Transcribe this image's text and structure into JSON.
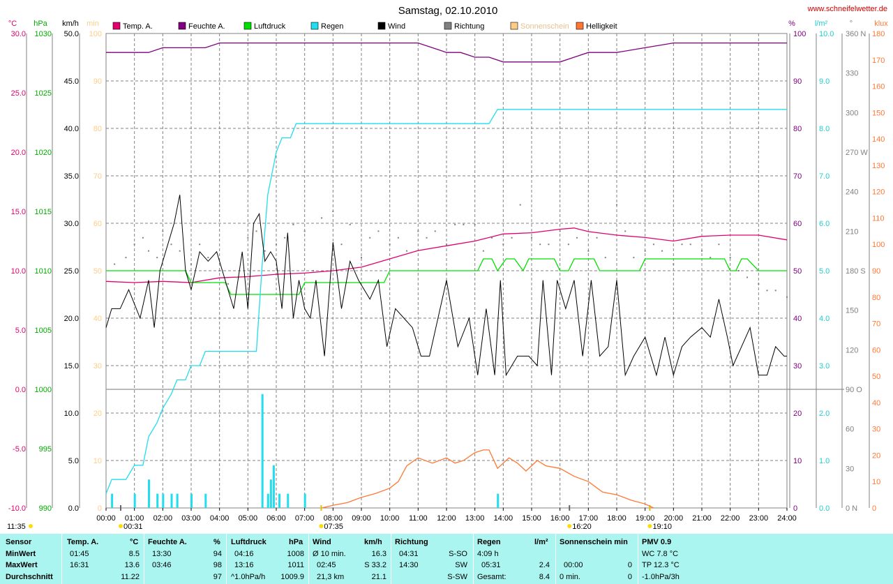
{
  "page": {
    "title": "Samstag, 02.10.2010",
    "website": "www.schneifelwetter.de"
  },
  "legend": [
    {
      "label": "Temp. A.",
      "color": "#e0006e"
    },
    {
      "label": "Feuchte A.",
      "color": "#800080"
    },
    {
      "label": "Luftdruck",
      "color": "#00e000"
    },
    {
      "label": "Regen",
      "color": "#22ddee"
    },
    {
      "label": "Wind",
      "color": "#000000"
    },
    {
      "label": "Richtung",
      "color": "#808080"
    },
    {
      "label": "Sonnenschein",
      "color": "#ffcc88"
    },
    {
      "label": "Helligkeit",
      "color": "#ff7733"
    }
  ],
  "axes": {
    "temp": {
      "unit": "°C",
      "color": "#e0006e",
      "ticks": [
        "30.0",
        "25.0",
        "20.0",
        "15.0",
        "10.0",
        "5.0",
        "0.0",
        "-5.0",
        "-10.0"
      ]
    },
    "pressure": {
      "unit": "hPa",
      "color": "#00b000",
      "ticks": [
        "1030",
        "1025",
        "1020",
        "1015",
        "1010",
        "1005",
        "1000",
        "995",
        "990"
      ]
    },
    "wind": {
      "unit": "km/h",
      "color": "#000000",
      "ticks": [
        "50.0",
        "45.0",
        "40.0",
        "35.0",
        "30.0",
        "25.0",
        "20.0",
        "15.0",
        "10.0",
        "5.0",
        "0.0"
      ]
    },
    "sun": {
      "unit": "min",
      "color": "#ffcc88",
      "ticks": [
        "100",
        "90",
        "80",
        "70",
        "60",
        "50",
        "40",
        "30",
        "20",
        "10",
        "0"
      ]
    },
    "humidity": {
      "unit": "%",
      "color": "#800080",
      "ticks": [
        "100",
        "90",
        "80",
        "70",
        "60",
        "50",
        "40",
        "30",
        "20",
        "10",
        "0"
      ]
    },
    "rain": {
      "unit": "l/m²",
      "color": "#22cccc",
      "ticks": [
        "10.0",
        "9.0",
        "8.0",
        "7.0",
        "6.0",
        "5.0",
        "4.0",
        "3.0",
        "2.0",
        "1.0",
        "0.0"
      ]
    },
    "direction": {
      "unit": "°",
      "color": "#808080",
      "ticks": [
        "360 N",
        "330",
        "300",
        "270 W",
        "240",
        "210",
        "180 S",
        "150",
        "120",
        "90 O",
        "60",
        "30",
        "0 N"
      ]
    },
    "lux": {
      "unit": "klux",
      "color": "#ff7733",
      "ticks": [
        "180",
        "170",
        "160",
        "150",
        "140",
        "130",
        "120",
        "110",
        "100",
        "90",
        "80",
        "70",
        "60",
        "50",
        "40",
        "30",
        "20",
        "10",
        "0"
      ]
    },
    "time_ticks": [
      "00:00",
      "01:00",
      "02:00",
      "03:00",
      "04:00",
      "05:00",
      "06:00",
      "07:00",
      "08:00",
      "09:00",
      "10:00",
      "11:00",
      "12:00",
      "13:00",
      "14:00",
      "15:00",
      "16:00",
      "17:00",
      "18:00",
      "19:00",
      "20:00",
      "21:00",
      "22:00",
      "23:00",
      "24:00"
    ]
  },
  "markers": {
    "min_time": "00:31",
    "sunrise": "07:35",
    "max_time": "16:20",
    "sunset": "19:10",
    "clock": "11:35"
  },
  "chart_data": {
    "type": "line",
    "title": "Samstag, 02.10.2010",
    "x_unit": "hours",
    "xlim": [
      0,
      24
    ],
    "series": [
      {
        "name": "Temp. A.",
        "axis": "temp",
        "color": "#e0006e",
        "x": [
          0,
          1,
          2,
          3,
          4,
          5,
          6,
          7,
          8,
          9,
          10,
          11,
          12,
          13,
          14,
          15,
          16,
          16.5,
          17,
          18,
          19,
          20,
          21,
          22,
          23,
          24
        ],
        "y": [
          9.1,
          9.0,
          9.1,
          9.0,
          9.4,
          9.5,
          9.7,
          9.8,
          10.0,
          10.3,
          11.0,
          11.7,
          12.1,
          12.5,
          13.1,
          13.2,
          13.5,
          13.6,
          13.3,
          13.0,
          12.8,
          12.5,
          12.9,
          13.0,
          13.0,
          12.6
        ]
      },
      {
        "name": "Feuchte A.",
        "axis": "humidity",
        "color": "#800080",
        "x": [
          0,
          1.5,
          2,
          3.5,
          4,
          11,
          11.5,
          12,
          12.5,
          13,
          13.5,
          14,
          16,
          16.5,
          17,
          18,
          19,
          20,
          24
        ],
        "y": [
          96,
          96,
          97,
          97,
          98,
          98,
          97,
          96,
          96,
          95,
          95,
          94,
          94,
          95,
          96,
          96,
          97,
          98,
          98
        ]
      },
      {
        "name": "Luftdruck",
        "axis": "pressure",
        "color": "#00e000",
        "x": [
          0,
          2.8,
          3,
          4.2,
          4.4,
          6.8,
          7,
          9.8,
          10,
          13.1,
          13.3,
          13.6,
          13.8,
          14.1,
          14.4,
          14.7,
          14.9,
          15.8,
          16,
          16.3,
          16.5,
          17.2,
          17.4,
          18.8,
          19,
          21.8,
          22,
          22.2,
          22.4,
          22.6,
          23,
          24
        ],
        "y": [
          1010,
          1010,
          1009,
          1009,
          1008,
          1008,
          1009,
          1009,
          1010,
          1010,
          1011,
          1011,
          1010,
          1011,
          1011,
          1010,
          1011,
          1011,
          1010,
          1010,
          1011,
          1011,
          1010,
          1010,
          1011,
          1011,
          1010,
          1010,
          1011,
          1011,
          1010,
          1010
        ]
      },
      {
        "name": "Regen",
        "axis": "rain",
        "color": "#22ddee",
        "x": [
          0,
          0.2,
          0.7,
          1,
          1.3,
          1.5,
          1.8,
          2,
          2.3,
          2.5,
          2.8,
          3,
          3.3,
          3.5,
          3.8,
          4,
          5.3,
          5.5,
          5.7,
          6,
          6.2,
          6.5,
          6.7,
          7,
          13.5,
          13.8,
          24
        ],
        "y": [
          0.3,
          0.6,
          0.6,
          0.9,
          0.9,
          1.5,
          1.8,
          2.1,
          2.4,
          2.7,
          2.7,
          3.0,
          3.0,
          3.3,
          3.3,
          3.3,
          3.3,
          5.1,
          6.6,
          7.5,
          7.8,
          7.8,
          8.1,
          8.1,
          8.1,
          8.4,
          8.4
        ]
      },
      {
        "name": "Wind",
        "axis": "wind",
        "color": "#000000",
        "x": [
          0,
          0.2,
          0.5,
          0.8,
          1.2,
          1.5,
          1.7,
          1.9,
          2.1,
          2.4,
          2.6,
          2.8,
          3.0,
          3.3,
          3.6,
          3.9,
          4.2,
          4.5,
          4.8,
          5.0,
          5.2,
          5.4,
          5.6,
          5.8,
          6.0,
          6.2,
          6.4,
          6.6,
          6.8,
          7.0,
          7.2,
          7.4,
          7.7,
          8.0,
          8.3,
          8.6,
          8.9,
          9.1,
          9.3,
          9.6,
          9.9,
          10.2,
          10.5,
          10.8,
          11.1,
          11.4,
          11.7,
          12.0,
          12.4,
          12.8,
          13.1,
          13.4,
          13.7,
          13.9,
          14.1,
          14.5,
          14.9,
          15.2,
          15.4,
          15.7,
          15.9,
          16.2,
          16.5,
          16.8,
          17.1,
          17.4,
          17.7,
          18.0,
          18.3,
          18.6,
          19.0,
          19.4,
          19.7,
          20.0,
          20.3,
          20.6,
          21.0,
          21.3,
          21.6,
          21.9,
          22.1,
          22.4,
          22.7,
          23.0,
          23.3,
          23.6,
          23.9,
          24.0
        ],
        "y": [
          19,
          21,
          21,
          23,
          20,
          24,
          19,
          25,
          27,
          30,
          33,
          25,
          23,
          27,
          26,
          27,
          24,
          21,
          27,
          21,
          30,
          31,
          26,
          27,
          26,
          21,
          29,
          20,
          24,
          21,
          20,
          24,
          16,
          28,
          21,
          26,
          24,
          23,
          22,
          24,
          17,
          21,
          20,
          19,
          16,
          16,
          20,
          24,
          17,
          20,
          14,
          21,
          14,
          24,
          14,
          16,
          16,
          15,
          24,
          14,
          24,
          21,
          24,
          16,
          24,
          16,
          17,
          24,
          14,
          16,
          18,
          14,
          18,
          14,
          17,
          18,
          19,
          18,
          22,
          18,
          15,
          17,
          19,
          14,
          14,
          17,
          16,
          16
        ]
      },
      {
        "name": "Helligkeit",
        "axis": "lux",
        "color": "#ff7733",
        "x": [
          7.6,
          8,
          8.5,
          9,
          9.5,
          10,
          10.3,
          10.6,
          11,
          11.5,
          12,
          12.3,
          12.6,
          13,
          13.3,
          13.5,
          13.8,
          14.2,
          14.5,
          14.8,
          15.2,
          15.5,
          16,
          16.5,
          17,
          17.5,
          18,
          18.5,
          19,
          19.3
        ],
        "y": [
          0,
          1,
          2,
          4,
          5.5,
          7.5,
          10,
          16,
          19,
          17,
          19,
          17,
          18,
          21,
          22,
          22,
          15,
          19,
          17,
          14,
          18,
          16,
          15,
          12,
          10,
          6,
          5,
          3,
          1.5,
          0
        ]
      },
      {
        "name": "Regen (Balken)",
        "axis": "rain",
        "type": "bar",
        "color": "#22ddee",
        "x": [
          0.2,
          1,
          1.5,
          1.8,
          2,
          2.3,
          2.5,
          3,
          3.5,
          5.5,
          5.7,
          5.8,
          5.9,
          6.1,
          6.4,
          7.0,
          13.8
        ],
        "y": [
          0.3,
          0.3,
          0.6,
          0.3,
          0.3,
          0.3,
          0.3,
          0.3,
          0.3,
          2.4,
          0.3,
          0.6,
          0.9,
          0.3,
          0.3,
          0.3,
          0.3
        ]
      },
      {
        "name": "Richtung",
        "axis": "direction",
        "type": "scatter",
        "color": "#808080",
        "x": [
          0.3,
          0.7,
          1.0,
          1.3,
          1.5,
          1.8,
          2.0,
          2.3,
          2.6,
          3.0,
          3.3,
          3.6,
          4.0,
          4.3,
          4.6,
          5.0,
          5.3,
          5.6,
          6.0,
          6.3,
          6.6,
          7.0,
          7.3,
          7.6,
          8.0,
          8.3,
          8.6,
          9.0,
          9.3,
          9.6,
          10.0,
          10.3,
          10.6,
          11.0,
          11.3,
          11.6,
          12.0,
          12.3,
          12.6,
          13.0,
          13.3,
          13.6,
          14.0,
          14.3,
          14.6,
          15.0,
          15.3,
          15.6,
          16.0,
          16.3,
          16.6,
          17.0,
          17.3,
          17.6,
          18.0,
          18.3,
          18.6,
          19.0,
          19.3,
          19.6,
          20.0,
          20.3,
          20.6,
          21.0,
          21.3,
          21.6,
          22.0,
          22.3,
          22.6,
          23.0,
          23.3,
          23.6,
          24.0
        ],
        "y": [
          185,
          190,
          200,
          205,
          195,
          190,
          210,
          200,
          195,
          185,
          200,
          190,
          180,
          170,
          175,
          205,
          210,
          195,
          200,
          205,
          215,
          210,
          180,
          220,
          225,
          200,
          215,
          190,
          205,
          210,
          200,
          205,
          195,
          210,
          205,
          210,
          200,
          215,
          215,
          215,
          195,
          205,
          200,
          205,
          230,
          205,
          200,
          200,
          210,
          200,
          205,
          195,
          205,
          190,
          230,
          210,
          190,
          195,
          200,
          195,
          185,
          200,
          200,
          195,
          190,
          200,
          190,
          180,
          175,
          170,
          165,
          165,
          160
        ]
      }
    ]
  },
  "stats": {
    "headers": [
      {
        "label": "Sensor"
      },
      {
        "label": "Temp. A.",
        "unit": "°C"
      },
      {
        "label": "Feuchte A.",
        "unit": "%"
      },
      {
        "label": "Luftdruck",
        "unit": "hPa"
      },
      {
        "label": "Wind",
        "unit": "km/h"
      },
      {
        "label": "Richtung"
      },
      {
        "label": "Regen",
        "unit": "l/m²"
      },
      {
        "label": "Sonnenschein min"
      },
      {
        "label": "PMV 0.9"
      }
    ],
    "rows": [
      {
        "label": "MinWert",
        "temp_time": "01:45",
        "temp_val": "8.5",
        "hum_time": "13:30",
        "hum_val": "94",
        "press_time": "04:16",
        "press_val": "1008",
        "wind_time": "Ø 10 min.",
        "wind_val": "16.3",
        "dir_time": "04:31",
        "dir_val": "S-SO",
        "rain_time": "4:09 h",
        "rain_val": "",
        "sun_time": "",
        "sun_val": "",
        "pmv": "WC 7.8 °C"
      },
      {
        "label": "MaxWert",
        "temp_time": "16:31",
        "temp_val": "13.6",
        "hum_time": "03:46",
        "hum_val": "98",
        "press_time": "13:16",
        "press_val": "1011",
        "wind_time": "02:45",
        "wind_val": "S 33.2",
        "dir_time": "14:30",
        "dir_val": "SW",
        "rain_time": "05:31",
        "rain_val": "2.4",
        "sun_time": "00:00",
        "sun_val": "0",
        "pmv": "TP 12.3 °C"
      },
      {
        "label": "Durchschnitt",
        "temp_time": "",
        "temp_val": "11.22",
        "hum_time": "",
        "hum_val": "97",
        "press_time": "^1.0hPa/h",
        "press_val": "1009.9",
        "wind_time": "21,3 km",
        "wind_val": "21.1",
        "dir_time": "",
        "dir_val": "S-SW",
        "rain_time": "Gesamt:",
        "rain_val": "8.4",
        "sun_time": "0 min.",
        "sun_val": "0",
        "pmv": "-1.0hPa/3h"
      }
    ]
  }
}
